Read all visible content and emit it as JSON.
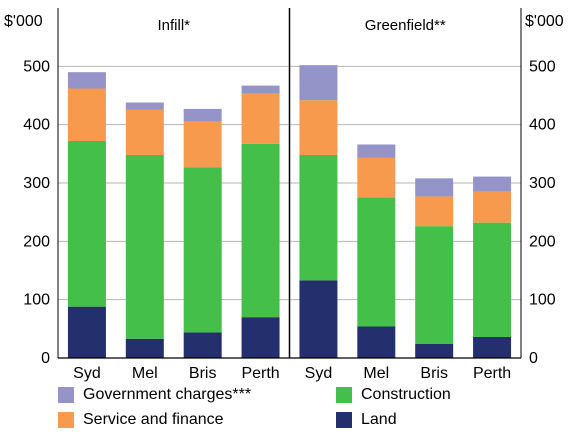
{
  "chart_data": {
    "type": "bar",
    "stacked": true,
    "title": "",
    "units_left": "$'000",
    "units_right": "$'000",
    "ylim": [
      0,
      600
    ],
    "yticks": [
      0,
      100,
      200,
      300,
      400,
      500
    ],
    "grid": true,
    "legend_position": "bottom",
    "panels": [
      {
        "title": "Infill*",
        "categories": [
          "Syd",
          "Mel",
          "Bris",
          "Perth"
        ]
      },
      {
        "title": "Greenfield**",
        "categories": [
          "Syd",
          "Mel",
          "Bris",
          "Perth"
        ]
      }
    ],
    "series": [
      {
        "name": "Land",
        "color": "#24306e",
        "values": [
          [
            88,
            33,
            44,
            70
          ],
          [
            133,
            54,
            24,
            36
          ]
        ]
      },
      {
        "name": "Construction",
        "color": "#43bf4a",
        "values": [
          [
            284,
            315,
            283,
            297
          ],
          [
            215,
            221,
            202,
            196
          ]
        ]
      },
      {
        "name": "Service and finance",
        "color": "#f79a4d",
        "values": [
          [
            90,
            78,
            78,
            86
          ],
          [
            94,
            68,
            51,
            53
          ]
        ]
      },
      {
        "name": "Government charges***",
        "color": "#9494c8",
        "values": [
          [
            28,
            12,
            22,
            14
          ],
          [
            60,
            23,
            31,
            26
          ]
        ]
      }
    ],
    "legend_order": [
      "Government charges***",
      "Construction",
      "Service and finance",
      "Land"
    ]
  }
}
